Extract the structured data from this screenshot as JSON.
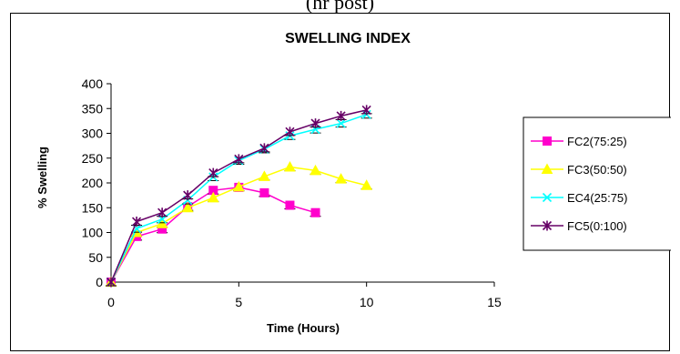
{
  "caption": "(hr post)",
  "chart_data": {
    "type": "line",
    "title": "SWELLING INDEX",
    "xlabel": "Time (Hours)",
    "ylabel": "% Swelling",
    "xlim": [
      0,
      15
    ],
    "ylim": [
      0,
      400
    ],
    "xticks": [
      0,
      5,
      10,
      15
    ],
    "yticks": [
      0,
      50,
      100,
      150,
      200,
      250,
      300,
      350,
      400
    ],
    "grid": false,
    "legend_position": "right",
    "series": [
      {
        "name": "FC2(75:25)",
        "color": "#ff00cc",
        "marker": "square",
        "x": [
          0,
          1,
          2,
          3,
          4,
          5,
          6,
          7,
          8
        ],
        "y": [
          0,
          92,
          107,
          152,
          185,
          191,
          180,
          155,
          140
        ]
      },
      {
        "name": "FC3(50:50)",
        "color": "#ffff00",
        "marker": "triangle",
        "x": [
          0,
          1,
          2,
          3,
          4,
          5,
          6,
          7,
          8,
          9,
          10
        ],
        "y": [
          0,
          100,
          118,
          150,
          170,
          192,
          213,
          232,
          225,
          208,
          195
        ]
      },
      {
        "name": "EC4(25:75)",
        "color": "#00ffff",
        "marker": "x",
        "x": [
          0,
          1,
          2,
          3,
          4,
          5,
          6,
          7,
          8,
          9,
          10
        ],
        "y": [
          0,
          108,
          127,
          165,
          212,
          245,
          268,
          295,
          308,
          320,
          338
        ]
      },
      {
        "name": "FC5(0:100)",
        "color": "#660066",
        "marker": "star",
        "x": [
          0,
          1,
          2,
          3,
          4,
          5,
          6,
          7,
          8,
          9,
          10
        ],
        "y": [
          0,
          122,
          140,
          175,
          220,
          248,
          270,
          303,
          320,
          335,
          347
        ]
      }
    ]
  }
}
